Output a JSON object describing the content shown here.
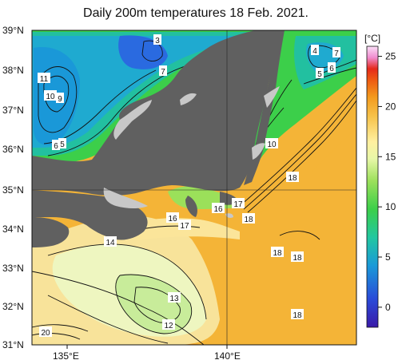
{
  "title": "Daily 200m temperatures 18 Feb. 2021.",
  "axes": {
    "lat_labels": [
      "39°N",
      "38°N",
      "37°N",
      "36°N",
      "35°N",
      "34°N",
      "33°N",
      "32°N",
      "31°N"
    ],
    "lon_labels": [
      "135°E",
      "140°E"
    ]
  },
  "colorbar": {
    "unit": "[°C]",
    "ticks": [
      "25",
      "20",
      "15",
      "10",
      "5",
      "0"
    ],
    "range": [
      -2,
      26
    ],
    "colors": [
      "#3a1aa8",
      "#2a5adf",
      "#1aa6d8",
      "#22c7a0",
      "#3ccf4a",
      "#9be05a",
      "#e8f7a8",
      "#fff0a0",
      "#f6c24a",
      "#f39a1e",
      "#ee6a12",
      "#e52a1a",
      "#f08ccf",
      "#f8c8f2"
    ]
  },
  "map": {
    "land_color": "#606060",
    "shore_color": "#c8c8c8",
    "contour_labels": [
      {
        "id": "c3",
        "text": "3"
      },
      {
        "id": "c7a",
        "text": "7"
      },
      {
        "id": "c11",
        "text": "11"
      },
      {
        "id": "c10a",
        "text": "10"
      },
      {
        "id": "c9",
        "text": "9"
      },
      {
        "id": "c6a",
        "text": "6"
      },
      {
        "id": "c5a",
        "text": "5"
      },
      {
        "id": "c4",
        "text": "4"
      },
      {
        "id": "c7b",
        "text": "7"
      },
      {
        "id": "c6b",
        "text": "6"
      },
      {
        "id": "c5b",
        "text": "5"
      },
      {
        "id": "c10b",
        "text": "10"
      },
      {
        "id": "c18a",
        "text": "18"
      },
      {
        "id": "c16a",
        "text": "16"
      },
      {
        "id": "c17a",
        "text": "17"
      },
      {
        "id": "c16b",
        "text": "16"
      },
      {
        "id": "c17b",
        "text": "17"
      },
      {
        "id": "c18b",
        "text": "18"
      },
      {
        "id": "c14",
        "text": "14"
      },
      {
        "id": "c18c",
        "text": "18"
      },
      {
        "id": "c18d",
        "text": "18"
      },
      {
        "id": "c13",
        "text": "13"
      },
      {
        "id": "c12",
        "text": "12"
      },
      {
        "id": "c18e",
        "text": "18"
      },
      {
        "id": "c20",
        "text": "20"
      }
    ]
  }
}
